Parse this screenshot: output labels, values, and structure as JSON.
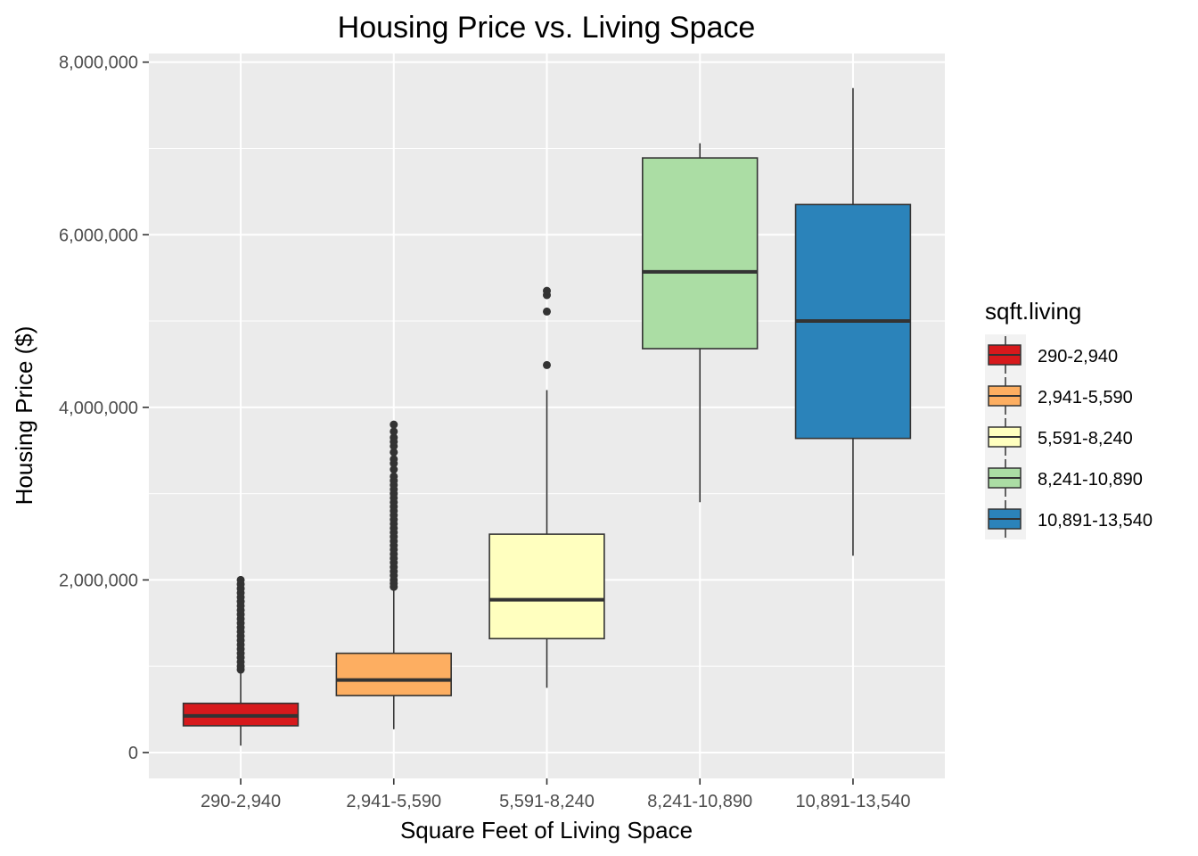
{
  "chart_data": {
    "type": "boxplot",
    "title": "Housing Price vs. Living Space",
    "xlabel": "Square Feet of Living Space",
    "ylabel": "Housing Price ($)",
    "ylim": [
      -300000,
      8100000
    ],
    "y_ticks": [
      0,
      2000000,
      4000000,
      6000000,
      8000000
    ],
    "y_tick_labels": [
      "0",
      "2,000,000",
      "4,000,000",
      "6,000,000",
      "8,000,000"
    ],
    "grid": true,
    "legend": {
      "title": "sqft.living",
      "position": "right"
    },
    "categories": [
      "290-2,940",
      "2,941-5,590",
      "5,591-8,240",
      "8,241-10,890",
      "10,891-13,540"
    ],
    "colors": [
      "#D7191C",
      "#FDAE61",
      "#FFFFBF",
      "#ABDDA4",
      "#2B83BA"
    ],
    "boxes": [
      {
        "label": "290-2,940",
        "whisker_low": 80000,
        "q1": 310000,
        "median": 425000,
        "q3": 570000,
        "whisker_high": 950000,
        "outliers": [
          960000,
          1000000,
          1050000,
          1100000,
          1150000,
          1200000,
          1250000,
          1300000,
          1350000,
          1400000,
          1450000,
          1500000,
          1550000,
          1600000,
          1650000,
          1700000,
          1750000,
          1800000,
          1850000,
          1900000,
          1950000,
          2000000
        ]
      },
      {
        "label": "2,941-5,590",
        "whisker_low": 270000,
        "q1": 660000,
        "median": 840000,
        "q3": 1150000,
        "whisker_high": 1900000,
        "outliers": [
          1920000,
          1960000,
          2000000,
          2050000,
          2100000,
          2150000,
          2200000,
          2250000,
          2300000,
          2350000,
          2400000,
          2450000,
          2500000,
          2550000,
          2600000,
          2650000,
          2700000,
          2750000,
          2800000,
          2850000,
          2900000,
          2950000,
          3000000,
          3050000,
          3100000,
          3150000,
          3200000,
          3280000,
          3350000,
          3400000,
          3480000,
          3550000,
          3600000,
          3650000,
          3720000,
          3800000
        ]
      },
      {
        "label": "5,591-8,240",
        "whisker_low": 750000,
        "q1": 1320000,
        "median": 1770000,
        "q3": 2530000,
        "whisker_high": 4200000,
        "outliers": [
          4490000,
          5110000,
          5300000,
          5350000
        ]
      },
      {
        "label": "8,241-10,890",
        "whisker_low": 2900000,
        "q1": 4680000,
        "median": 5570000,
        "q3": 6890000,
        "whisker_high": 7060000,
        "outliers": []
      },
      {
        "label": "10,891-13,540",
        "whisker_low": 2280000,
        "q1": 3640000,
        "median": 5000000,
        "q3": 6350000,
        "whisker_high": 7700000,
        "outliers": []
      }
    ]
  }
}
